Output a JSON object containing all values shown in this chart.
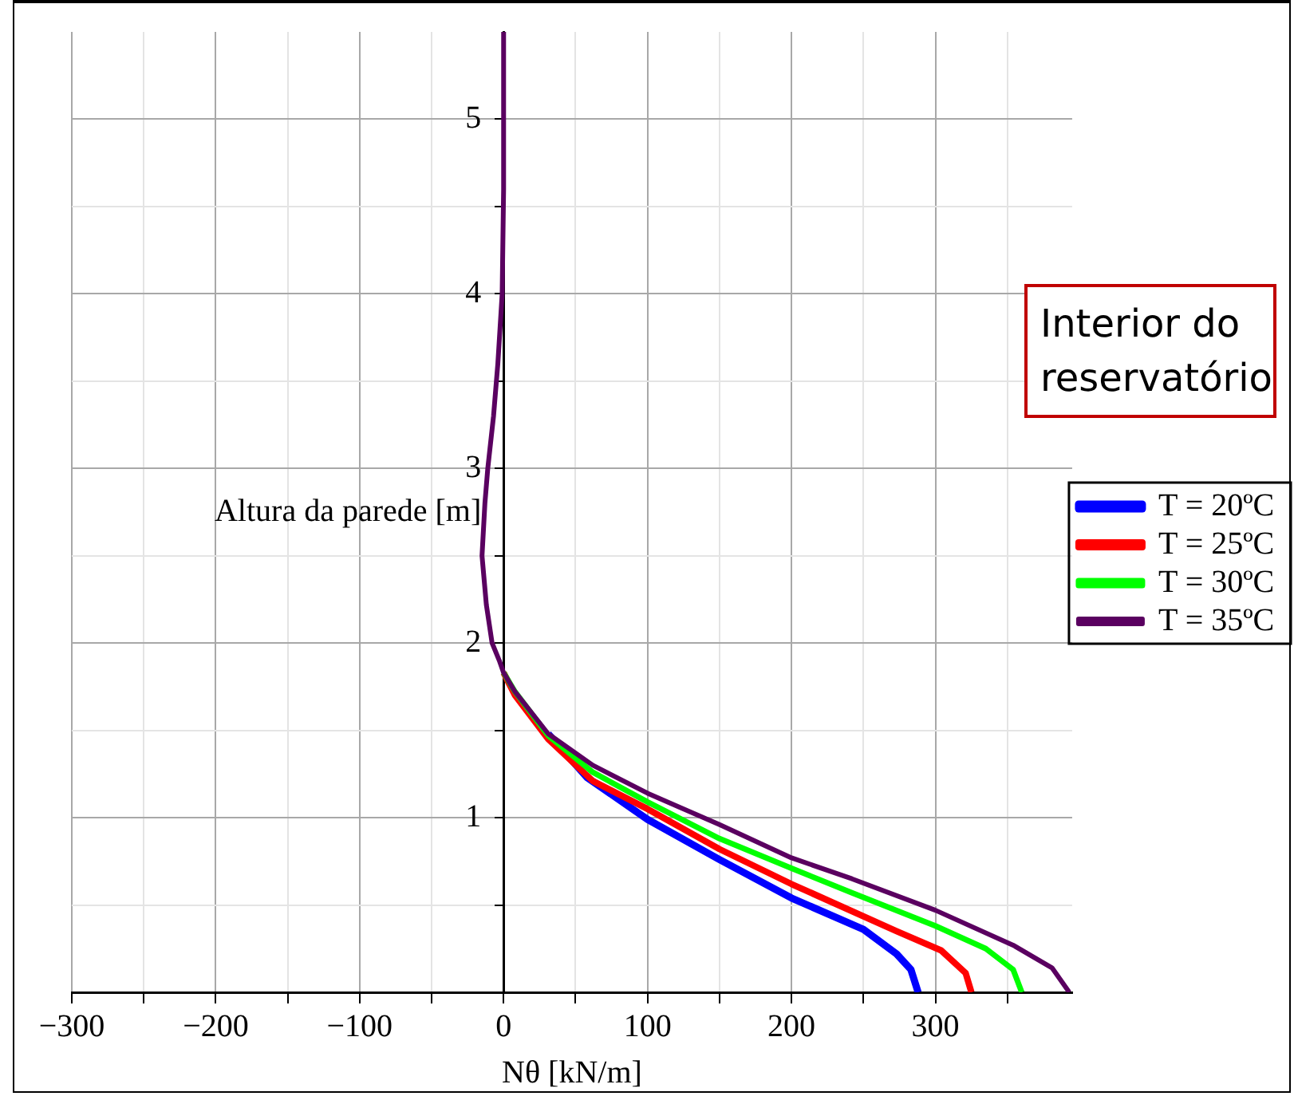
{
  "chart_data": {
    "type": "line",
    "xlabel": "Nθ [kN/m]",
    "ylabel": "Altura da parede [m]",
    "legend_title": "Interior do reservatório",
    "legend": "right",
    "grid": true,
    "marker": "none",
    "line_style": "solid",
    "xlim": [
      -300,
      395
    ],
    "ylim": [
      0,
      5.5
    ],
    "xticks": [
      {
        "value": -300,
        "label": "−300"
      },
      {
        "value": -250,
        "label": null
      },
      {
        "value": -200,
        "label": "−200"
      },
      {
        "value": -150,
        "label": null
      },
      {
        "value": -100,
        "label": "−100"
      },
      {
        "value": -50,
        "label": null
      },
      0,
      {
        "value": 50,
        "label": null
      },
      100,
      {
        "value": 150,
        "label": null
      },
      200,
      {
        "value": 250,
        "label": null
      },
      300,
      {
        "value": 350,
        "label": null
      }
    ],
    "yticks": [
      {
        "value": 0.5,
        "label": null
      },
      1,
      {
        "value": 1.5,
        "label": null
      },
      2,
      {
        "value": 2.5,
        "label": null
      },
      3,
      {
        "value": 3.5,
        "label": null
      },
      4,
      {
        "value": 4.5,
        "label": null
      },
      5
    ],
    "series": [
      {
        "name": "T = 20ºC",
        "color": "#0000ff",
        "x": [
          31,
          58,
          100,
          150,
          200,
          250,
          273,
          283,
          288
        ],
        "values": [
          1.48,
          1.23,
          0.99,
          0.76,
          0.54,
          0.36,
          0.22,
          0.13,
          0
        ]
      },
      {
        "name": "T = 25ºC",
        "color": "#ff0000",
        "x": [
          0,
          8,
          31,
          62,
          100,
          150,
          200,
          273,
          304,
          321,
          325
        ],
        "values": [
          1.83,
          1.7,
          1.45,
          1.21,
          1.05,
          0.82,
          0.62,
          0.35,
          0.24,
          0.11,
          0
        ]
      },
      {
        "name": "T = 30ºC",
        "color": "#00ff00",
        "x": [
          0,
          8,
          31,
          62,
          100,
          150,
          200,
          242,
          300,
          335,
          354,
          360
        ],
        "values": [
          1.83,
          1.72,
          1.47,
          1.26,
          1.09,
          0.88,
          0.71,
          0.57,
          0.38,
          0.25,
          0.13,
          0
        ]
      },
      {
        "name": "T = 35ºC",
        "color": "#5a0060",
        "x": [
          0,
          0,
          -1,
          -4,
          -7,
          -11,
          -13,
          -15,
          -12,
          -8,
          -3,
          0,
          8,
          31,
          62,
          100,
          150,
          200,
          242,
          300,
          354,
          381,
          393
        ],
        "values": [
          5.5,
          4.6,
          4.0,
          3.6,
          3.3,
          3.0,
          2.8,
          2.5,
          2.22,
          2.0,
          1.9,
          1.83,
          1.72,
          1.48,
          1.3,
          1.14,
          0.96,
          0.77,
          0.65,
          0.47,
          0.27,
          0.14,
          0
        ]
      }
    ]
  }
}
